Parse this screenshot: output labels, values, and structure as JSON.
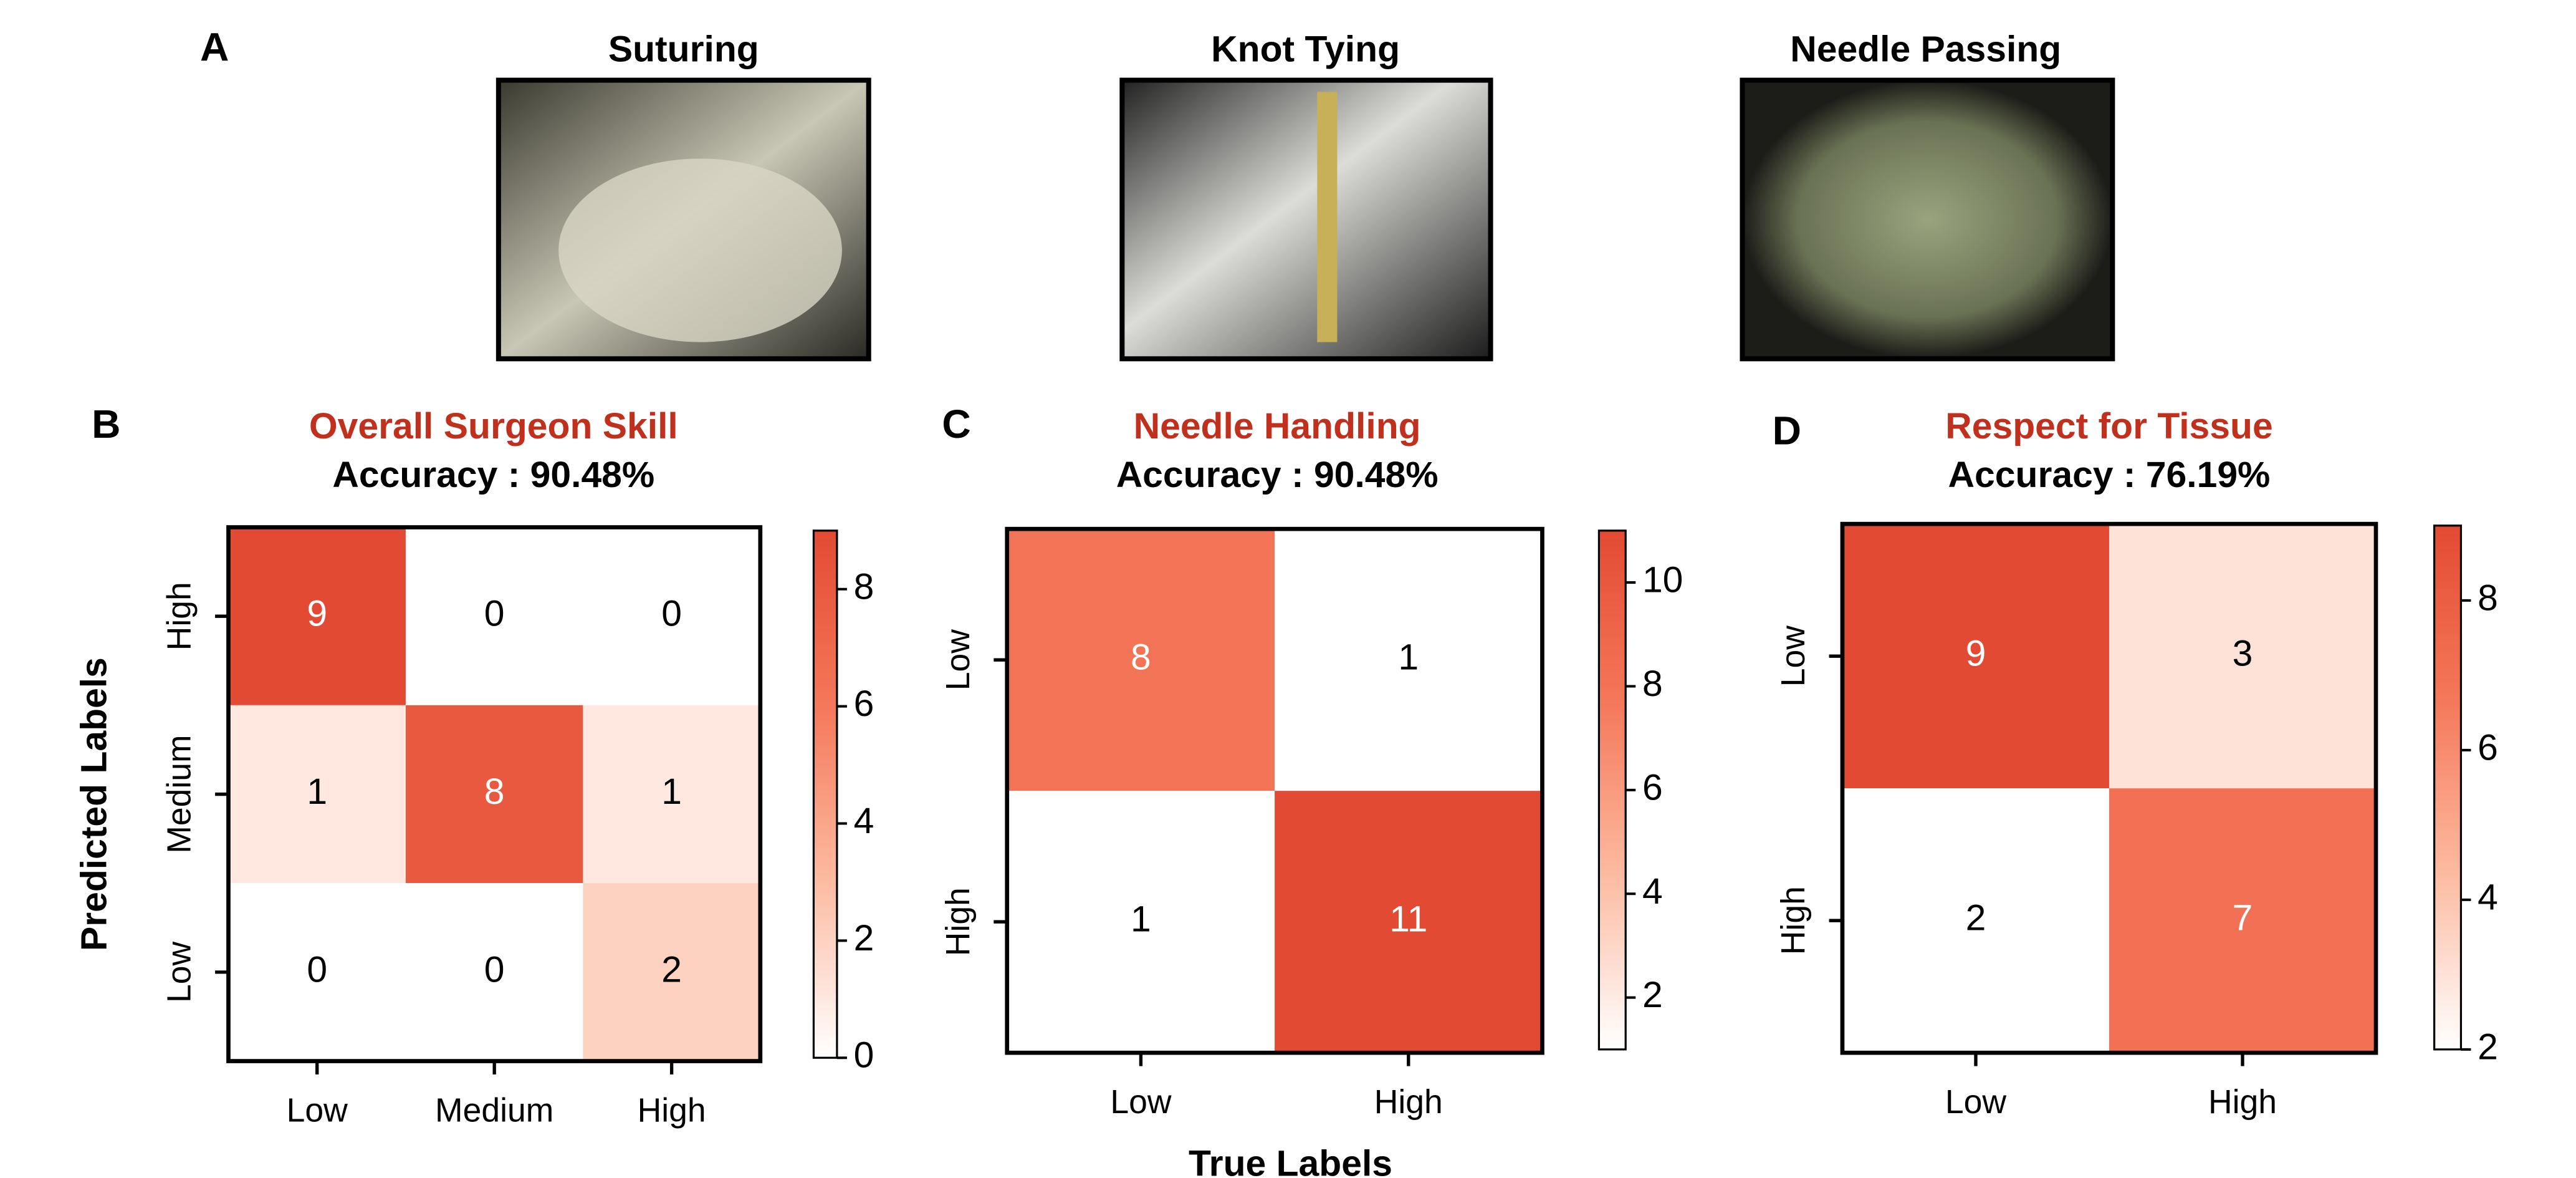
{
  "panel_labels": [
    "A",
    "B",
    "C",
    "D"
  ],
  "videos": {
    "titles": [
      "Suturing",
      "Knot Tying",
      "Needle Passing"
    ]
  },
  "x_label": "True Labels",
  "y_label": "Predicted Labels",
  "chart_data": [
    {
      "type": "heatmap",
      "title": "Overall Surgeon Skill",
      "subtitle": "Accuracy : 90.48%",
      "x_categories": [
        "Low",
        "Medium",
        "High"
      ],
      "y_categories": [
        "High",
        "Medium",
        "Low"
      ],
      "values": [
        [
          9,
          0,
          0
        ],
        [
          1,
          8,
          1
        ],
        [
          0,
          0,
          2
        ]
      ],
      "colormap": [
        "#ffffff",
        "#fcbba1",
        "#f5785a",
        "#e34a33"
      ],
      "clim": [
        0,
        9
      ],
      "cticks": [
        0,
        2,
        4,
        6,
        8
      ]
    },
    {
      "type": "heatmap",
      "title": "Needle Handling",
      "subtitle": "Accuracy : 90.48%",
      "x_categories": [
        "Low",
        "High"
      ],
      "y_categories": [
        "Low",
        "High"
      ],
      "values": [
        [
          8,
          1
        ],
        [
          1,
          11
        ]
      ],
      "colormap": [
        "#ffffff",
        "#fcbba1",
        "#f5785a",
        "#e34a33"
      ],
      "clim": [
        1,
        11
      ],
      "cticks": [
        2,
        4,
        6,
        8,
        10
      ]
    },
    {
      "type": "heatmap",
      "title": "Respect for Tissue",
      "subtitle": "Accuracy : 76.19%",
      "x_categories": [
        "Low",
        "High"
      ],
      "y_categories": [
        "Low",
        "High"
      ],
      "values": [
        [
          9,
          3
        ],
        [
          2,
          7
        ]
      ],
      "colormap": [
        "#ffffff",
        "#fcbba1",
        "#f5785a",
        "#e34a33"
      ],
      "clim": [
        2,
        9
      ],
      "cticks": [
        2,
        4,
        6,
        8
      ]
    }
  ]
}
